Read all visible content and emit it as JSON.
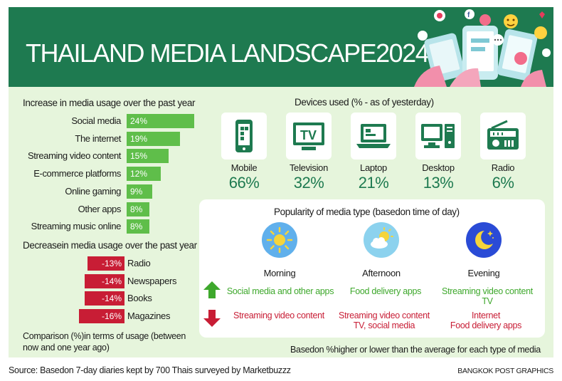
{
  "header": {
    "title": "THAILAND MEDIA LANDSCAPE2024"
  },
  "colors": {
    "brand_green": "#1e7a50",
    "bar_green": "#5fbe4a",
    "bar_red": "#c81d35",
    "panel_bg": "#e6f5dc",
    "value_green": "#3ea82c"
  },
  "chart_data": [
    {
      "type": "bar",
      "title": "Increase in media usage over the past year",
      "categories": [
        "Social media",
        "The internet",
        "Streaming video content",
        "E-commerce platforms",
        "Online gaming",
        "Other apps",
        "Streaming music online"
      ],
      "values": [
        24,
        19,
        15,
        12,
        9,
        8,
        8
      ],
      "value_labels": [
        "24%",
        "19%",
        "15%",
        "12%",
        "9%",
        "8%",
        "8%"
      ],
      "unit": "%"
    },
    {
      "type": "bar",
      "title": "Decreasein media usage over the past year",
      "categories": [
        "Radio",
        "Newspapers",
        "Books",
        "Magazines"
      ],
      "values": [
        -13,
        -14,
        -14,
        -16
      ],
      "value_labels": [
        "-13%",
        "-14%",
        "-14%",
        "-16%"
      ],
      "unit": "%"
    },
    {
      "type": "table",
      "title": "Devices used (% - as of yesterday)",
      "categories": [
        "Mobile",
        "Television",
        "Laptop",
        "Desktop",
        "Radio"
      ],
      "values": [
        66,
        32,
        21,
        13,
        6
      ],
      "value_labels": [
        "66%",
        "32%",
        "21%",
        "13%",
        "6%"
      ],
      "icons": [
        "mobile-phone-icon",
        "television-icon",
        "laptop-icon",
        "desktop-computer-icon",
        "radio-icon"
      ]
    }
  ],
  "comparison_note": "Comparison (%)in terms of usage (between now and one year ago)",
  "time_of_day": {
    "title": "Popularity of media type (basedon time of day)",
    "periods": [
      {
        "name": "Morning",
        "icon": "sun-icon",
        "increase": [
          "Social media and other apps"
        ],
        "decrease": [
          "Streaming video content"
        ]
      },
      {
        "name": "Afternoon",
        "icon": "sun-cloud-icon",
        "increase": [
          "Food delivery apps"
        ],
        "decrease": [
          "Streaming video content",
          "TV, social media"
        ]
      },
      {
        "name": "Evening",
        "icon": "moon-stars-icon",
        "increase": [
          "Streaming video content",
          "TV"
        ],
        "decrease": [
          "Internet",
          "Food delivery apps"
        ]
      }
    ],
    "footnote": "Basedon %higher or lower than the average for each type of media"
  },
  "footer": {
    "source": "Source: Basedon 7-day diaries kept by 700 Thais surveyed by Marketbuzzz",
    "credit": "BANGKOK POST GRAPHICS"
  }
}
